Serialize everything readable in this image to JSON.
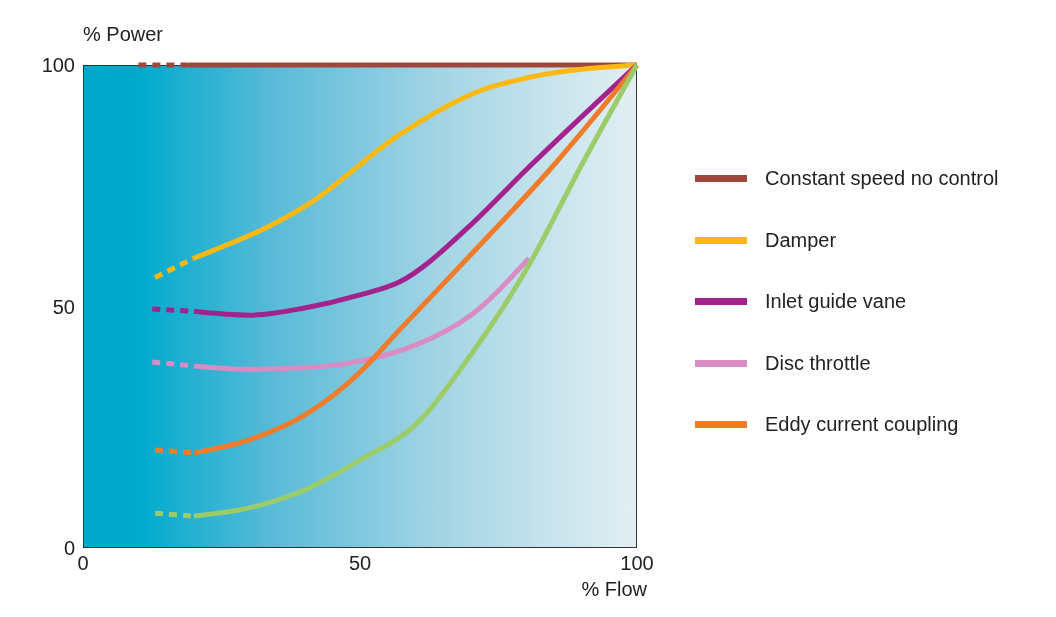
{
  "chart_data": {
    "type": "line",
    "xlabel": "% Flow",
    "ylabel": "% Power",
    "xlim": [
      0,
      100
    ],
    "ylim": [
      0,
      100
    ],
    "xticks": [
      0,
      50,
      100
    ],
    "yticks": [
      0,
      50,
      100
    ],
    "legend": "right",
    "marker": "none",
    "line_style": "solid",
    "series": [
      {
        "name": "Constant speed no control",
        "color": "#a0463a",
        "x": [
          19,
          100
        ],
        "values": [
          100,
          100
        ]
      },
      {
        "line_style": "dashed",
        "color": "#a0463a",
        "x": [
          10,
          19
        ],
        "values": [
          100,
          100
        ]
      },
      {
        "name": "Damper",
        "color": "#fdb913",
        "x": [
          20,
          41,
          57,
          72,
          80,
          100
        ],
        "values": [
          60,
          71.4,
          85.5,
          94.8,
          97.3,
          100
        ]
      },
      {
        "line_style": "dashed",
        "color": "#fdb913",
        "x": [
          13,
          20
        ],
        "values": [
          56,
          60
        ]
      },
      {
        "name": "Inlet guide vane",
        "color": "#a3238e",
        "x": [
          20,
          30,
          40,
          50,
          57,
          70,
          80,
          100
        ],
        "values": [
          49,
          48.2,
          49.7,
          52.4,
          55,
          66.9,
          78.3,
          100
        ]
      },
      {
        "line_style": "dashed",
        "color": "#a3238e",
        "x": [
          12.5,
          20
        ],
        "values": [
          49.5,
          49
        ]
      },
      {
        "name": "Disc throttle",
        "color": "#d98cc4",
        "x": [
          20,
          30,
          40,
          50,
          60,
          70,
          80.5
        ],
        "values": [
          37.7,
          37,
          37.3,
          38.7,
          42,
          48.2,
          60
        ]
      },
      {
        "line_style": "dashed",
        "color": "#d98cc4",
        "x": [
          12.5,
          20
        ],
        "values": [
          38.5,
          37.7
        ]
      },
      {
        "name": "Eddy current coupling",
        "color": "#f07b2a",
        "x": [
          20,
          30,
          40,
          50,
          57,
          70,
          85,
          100
        ],
        "values": [
          19.7,
          22.4,
          27.5,
          36.4,
          45,
          60.7,
          79.3,
          100
        ]
      },
      {
        "line_style": "dashed",
        "color": "#f07b2a",
        "x": [
          13,
          20
        ],
        "values": [
          20.3,
          19.7
        ]
      },
      {
        "color": "#9ccc6a",
        "x": [
          20,
          30,
          40,
          50,
          60,
          70,
          80,
          90,
          100
        ],
        "values": [
          6.6,
          8.3,
          12,
          18.2,
          25.5,
          40,
          57.6,
          79.3,
          100
        ]
      },
      {
        "line_style": "dashed",
        "color": "#9ccc6a",
        "x": [
          13,
          20
        ],
        "values": [
          7.2,
          6.6
        ]
      }
    ]
  }
}
